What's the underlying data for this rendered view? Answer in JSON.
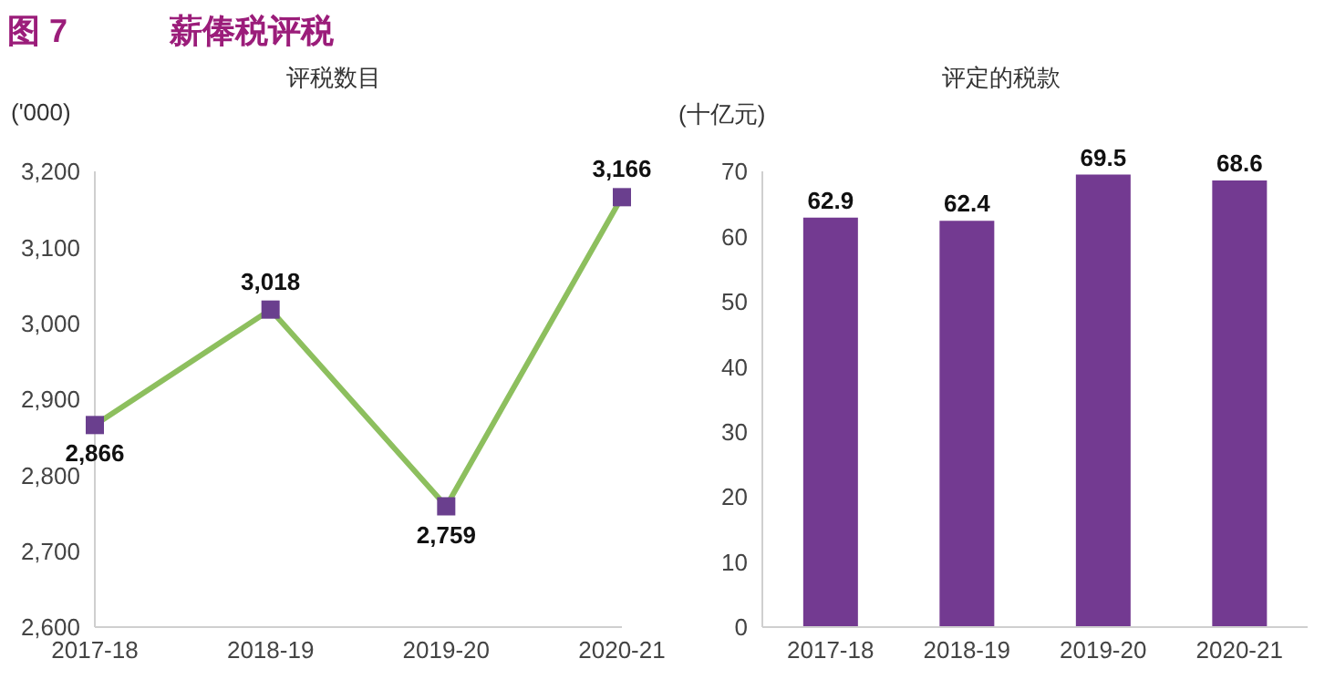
{
  "chart_data": [
    {
      "type": "line",
      "title": "评税数目",
      "ylabel": "('000)",
      "annotations": [
        "图 7",
        "薪俸税评税"
      ],
      "categories": [
        "2017-18",
        "2018-19",
        "2019-20",
        "2020-21"
      ],
      "series": [
        {
          "color": "#8dbf5e",
          "colors": [
            "#6a3f8e",
            "#6a3f8e",
            "#6a3f8e",
            "#6a3f8e"
          ],
          "values": [
            2866,
            3018,
            2759,
            3166
          ],
          "value_labels": [
            "2,866",
            "3,018",
            "2,759",
            "3,166"
          ]
        }
      ],
      "ylim": [
        2600,
        3200
      ],
      "yticks": [
        {
          "value": 2600,
          "label": "2,600"
        },
        {
          "value": 2700,
          "label": "2,700"
        },
        {
          "value": 2800,
          "label": "2,800"
        },
        {
          "value": 2900,
          "label": "2,900"
        },
        {
          "value": 3000,
          "label": "3,000"
        },
        {
          "value": 3100,
          "label": "3,100"
        },
        {
          "value": 3200,
          "label": "3,200"
        }
      ],
      "grid": false,
      "legend": false,
      "marker": "square",
      "line_style": "solid"
    },
    {
      "type": "bar",
      "title": "评定的税款",
      "ylabel": "(十亿元)",
      "categories": [
        "2017-18",
        "2018-19",
        "2019-20",
        "2020-21"
      ],
      "series": [
        {
          "color": "#733a91",
          "values": [
            62.9,
            62.4,
            69.5,
            68.6
          ]
        }
      ],
      "ylim": [
        0,
        70
      ],
      "yticks": [
        0,
        10,
        20,
        30,
        40,
        50,
        60,
        70
      ],
      "grid": false,
      "legend": false,
      "data_labels": true
    }
  ]
}
